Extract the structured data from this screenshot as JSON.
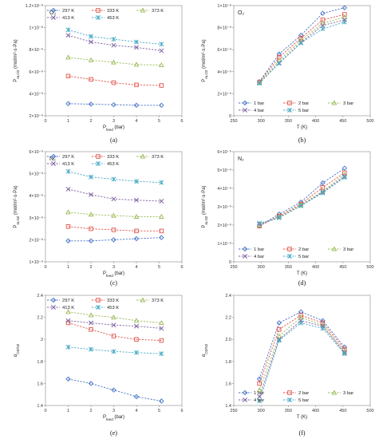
{
  "chart_data": [
    {
      "type": "line",
      "panel_label": "(a)",
      "gas_label": "O₂",
      "xlabel": "P_feed (bar)",
      "ylabel": "P_m,O2 (mol/m²·s·Pa)",
      "xlim": [
        0,
        6
      ],
      "ylim": [
        2e-09,
        1.2e-08
      ],
      "xticks": [
        0,
        1,
        2,
        3,
        4,
        5,
        6
      ],
      "yticks": [
        2e-09,
        4e-09,
        6e-09,
        8e-09,
        1e-08,
        1.2e-08
      ],
      "ytick_labels": [
        "2×10⁻⁹",
        "4×10⁻⁹",
        "6×10⁻⁹",
        "8×10⁻⁹",
        "1×10⁻⁸",
        "1.2×10⁻⁸"
      ],
      "legend_cols": 3,
      "series": [
        {
          "name": "297 K",
          "marker": "diamond",
          "color": "#4472C4",
          "x": [
            1,
            2,
            3,
            4,
            5.1
          ],
          "y": [
            3.1e-09,
            3.05e-09,
            3e-09,
            2.95e-09,
            2.95e-09
          ]
        },
        {
          "name": "333 K",
          "marker": "square",
          "color": "#E0534A",
          "x": [
            1,
            2,
            3,
            4,
            5.1
          ],
          "y": [
            5.6e-09,
            5.3e-09,
            5e-09,
            4.8e-09,
            4.75e-09
          ]
        },
        {
          "name": "373 K",
          "marker": "triangle",
          "color": "#9BBB59",
          "x": [
            1,
            2,
            3,
            4,
            5.1
          ],
          "y": [
            7.3e-09,
            7.05e-09,
            6.85e-09,
            6.65e-09,
            6.6e-09
          ]
        },
        {
          "name": "413 K",
          "marker": "x",
          "color": "#8064A2",
          "x": [
            1,
            2,
            3,
            4,
            5.1
          ],
          "y": [
            9.3e-09,
            8.7e-09,
            8.4e-09,
            8.2e-09,
            7.9e-09
          ]
        },
        {
          "name": "453 K",
          "marker": "star",
          "color": "#4BACC6",
          "x": [
            1,
            2,
            3,
            4,
            5.1
          ],
          "y": [
            9.8e-09,
            9.2e-09,
            8.95e-09,
            8.7e-09,
            8.5e-09
          ]
        }
      ]
    },
    {
      "type": "line",
      "panel_label": "(b)",
      "gas_label": "O₂",
      "xlabel": "T (K)",
      "ylabel": "P_m,O2 (mol/m²·s·Pa)",
      "xlim": [
        250,
        500
      ],
      "ylim": [
        0,
        1e-08
      ],
      "xticks": [
        250,
        300,
        350,
        400,
        450,
        500
      ],
      "yticks": [
        0,
        2e-09,
        4e-09,
        6e-09,
        8e-09,
        1e-08
      ],
      "ytick_labels": [
        "0",
        "2×10⁻⁹",
        "4×10⁻⁹",
        "6×10⁻⁹",
        "8×10⁻⁹",
        "1×10⁻⁸"
      ],
      "legend_cols": 3,
      "series": [
        {
          "name": "1 bar",
          "marker": "diamond",
          "color": "#4472C4",
          "x": [
            297,
            333,
            373,
            413,
            453
          ],
          "y": [
            3.1e-09,
            5.6e-09,
            7.3e-09,
            9.3e-09,
            9.8e-09
          ]
        },
        {
          "name": "2 bar",
          "marker": "square",
          "color": "#E0534A",
          "x": [
            297,
            333,
            373,
            413,
            453
          ],
          "y": [
            3.05e-09,
            5.3e-09,
            7.05e-09,
            8.7e-09,
            9.2e-09
          ]
        },
        {
          "name": "3 bar",
          "marker": "triangle",
          "color": "#9BBB59",
          "x": [
            297,
            333,
            373,
            413,
            453
          ],
          "y": [
            3e-09,
            5e-09,
            6.85e-09,
            8.4e-09,
            8.95e-09
          ]
        },
        {
          "name": "4 bar",
          "marker": "x",
          "color": "#8064A2",
          "x": [
            297,
            333,
            373,
            413,
            453
          ],
          "y": [
            2.95e-09,
            4.8e-09,
            6.65e-09,
            8.2e-09,
            8.7e-09
          ]
        },
        {
          "name": "5 bar",
          "marker": "star",
          "color": "#4BACC6",
          "x": [
            297,
            333,
            373,
            413,
            453
          ],
          "y": [
            2.95e-09,
            4.75e-09,
            6.6e-09,
            7.9e-09,
            8.5e-09
          ]
        }
      ]
    },
    {
      "type": "line",
      "panel_label": "(c)",
      "gas_label": "N₂",
      "xlabel": "P_feed (bar)",
      "ylabel": "P_m,N2 (mol/m²·s·Pa)",
      "xlim": [
        0,
        6
      ],
      "ylim": [
        1e-09,
        6e-09
      ],
      "xticks": [
        0,
        1,
        2,
        3,
        4,
        5,
        6
      ],
      "yticks": [
        1e-09,
        2e-09,
        3e-09,
        4e-09,
        5e-09,
        6e-09
      ],
      "ytick_labels": [
        "1×10⁻⁹",
        "2×10⁻⁹",
        "3×10⁻⁹",
        "4×10⁻⁹",
        "5×10⁻⁹",
        "6×10⁻⁹"
      ],
      "legend_cols": 3,
      "series": [
        {
          "name": "297 K",
          "marker": "diamond",
          "color": "#4472C4",
          "x": [
            1,
            2,
            3,
            4,
            5.1
          ],
          "y": [
            1.95e-09,
            1.95e-09,
            2e-09,
            2.05e-09,
            2.1e-09
          ]
        },
        {
          "name": "333 K",
          "marker": "square",
          "color": "#E0534A",
          "x": [
            1,
            2,
            3,
            4,
            5.1
          ],
          "y": [
            2.6e-09,
            2.5e-09,
            2.45e-09,
            2.4e-09,
            2.4e-09
          ]
        },
        {
          "name": "373 K",
          "marker": "triangle",
          "color": "#9BBB59",
          "x": [
            1,
            2,
            3,
            4,
            5.1
          ],
          "y": [
            3.25e-09,
            3.15e-09,
            3.1e-09,
            3.05e-09,
            3.05e-09
          ]
        },
        {
          "name": "413 K",
          "marker": "x",
          "color": "#8064A2",
          "x": [
            1,
            2,
            3,
            4,
            5.1
          ],
          "y": [
            4.3e-09,
            4.05e-09,
            3.85e-09,
            3.8e-09,
            3.75e-09
          ]
        },
        {
          "name": "453 K",
          "marker": "star",
          "color": "#4BACC6",
          "x": [
            1,
            2,
            3,
            4,
            5.1
          ],
          "y": [
            5.1e-09,
            4.85e-09,
            4.75e-09,
            4.65e-09,
            4.6e-09
          ]
        }
      ]
    },
    {
      "type": "line",
      "panel_label": "(d)",
      "gas_label": "N₂",
      "xlabel": "T (K)",
      "ylabel": "P_m,N2 (mol/m²·s·Pa)",
      "xlim": [
        250,
        500
      ],
      "ylim": [
        0,
        6e-09
      ],
      "xticks": [
        250,
        300,
        350,
        400,
        450,
        500
      ],
      "yticks": [
        0,
        1e-09,
        2e-09,
        3e-09,
        4e-09,
        5e-09,
        6e-09
      ],
      "ytick_labels": [
        "0",
        "1×10⁻⁹",
        "2×10⁻⁹",
        "3×10⁻⁹",
        "4×10⁻⁹",
        "5×10⁻⁹",
        "6×10⁻⁹"
      ],
      "legend_cols": 3,
      "series": [
        {
          "name": "1 bar",
          "marker": "diamond",
          "color": "#4472C4",
          "x": [
            297,
            333,
            373,
            413,
            453
          ],
          "y": [
            1.95e-09,
            2.6e-09,
            3.25e-09,
            4.3e-09,
            5.1e-09
          ]
        },
        {
          "name": "2 bar",
          "marker": "square",
          "color": "#E0534A",
          "x": [
            297,
            333,
            373,
            413,
            453
          ],
          "y": [
            1.95e-09,
            2.5e-09,
            3.15e-09,
            4.05e-09,
            4.85e-09
          ]
        },
        {
          "name": "3 bar",
          "marker": "triangle",
          "color": "#9BBB59",
          "x": [
            297,
            333,
            373,
            413,
            453
          ],
          "y": [
            2e-09,
            2.45e-09,
            3.1e-09,
            3.85e-09,
            4.75e-09
          ]
        },
        {
          "name": "4 bar",
          "marker": "x",
          "color": "#8064A2",
          "x": [
            297,
            333,
            373,
            413,
            453
          ],
          "y": [
            2.05e-09,
            2.4e-09,
            3.05e-09,
            3.8e-09,
            4.65e-09
          ]
        },
        {
          "name": "5 bar",
          "marker": "star",
          "color": "#4BACC6",
          "x": [
            297,
            333,
            373,
            413,
            453
          ],
          "y": [
            2.1e-09,
            2.4e-09,
            3.05e-09,
            3.75e-09,
            4.6e-09
          ]
        }
      ]
    },
    {
      "type": "line",
      "panel_label": "(e)",
      "xlabel": "P_feed (bar)",
      "ylabel": "α_O2/N2",
      "xlim": [
        0,
        6
      ],
      "ylim": [
        1.4,
        2.4
      ],
      "xticks": [
        0,
        1,
        2,
        3,
        4,
        5,
        6
      ],
      "yticks": [
        1.4,
        1.6,
        1.8,
        2.0,
        2.2,
        2.4
      ],
      "ytick_labels": [
        "1.4",
        "1.6",
        "1.8",
        "2",
        "2.2",
        "2.4"
      ],
      "legend_cols": 3,
      "series": [
        {
          "name": "297 K",
          "marker": "diamond",
          "color": "#4472C4",
          "x": [
            1,
            2,
            3,
            4,
            5.1
          ],
          "y": [
            1.64,
            1.6,
            1.54,
            1.48,
            1.44
          ]
        },
        {
          "name": "333 K",
          "marker": "square",
          "color": "#E0534A",
          "x": [
            1,
            2,
            3,
            4,
            5.1
          ],
          "y": [
            2.15,
            2.09,
            2.03,
            2.0,
            1.99
          ]
        },
        {
          "name": "373 K",
          "marker": "triangle",
          "color": "#9BBB59",
          "x": [
            1,
            2,
            3,
            4,
            5.1
          ],
          "y": [
            2.25,
            2.22,
            2.2,
            2.17,
            2.15
          ]
        },
        {
          "name": "413 K",
          "marker": "x",
          "color": "#8064A2",
          "x": [
            1,
            2,
            3,
            4,
            5.1
          ],
          "y": [
            2.17,
            2.15,
            2.13,
            2.12,
            2.1
          ]
        },
        {
          "name": "453 K",
          "marker": "star",
          "color": "#4BACC6",
          "x": [
            1,
            2,
            3,
            4,
            5.1
          ],
          "y": [
            1.93,
            1.91,
            1.89,
            1.88,
            1.87
          ]
        }
      ]
    },
    {
      "type": "line",
      "panel_label": "(f)",
      "xlabel": "T (K)",
      "ylabel": "α_O2/N2",
      "xlim": [
        250,
        500
      ],
      "ylim": [
        1.4,
        2.4
      ],
      "xticks": [
        250,
        300,
        350,
        400,
        450,
        500
      ],
      "yticks": [
        1.4,
        1.6,
        1.8,
        2.0,
        2.2,
        2.4
      ],
      "ytick_labels": [
        "1.4",
        "1.6",
        "1.8",
        "2.0",
        "2.2",
        "2.4"
      ],
      "legend_cols": 3,
      "series": [
        {
          "name": "1 bar",
          "marker": "diamond",
          "color": "#4472C4",
          "x": [
            297,
            333,
            373,
            413,
            453
          ],
          "y": [
            1.64,
            2.15,
            2.25,
            2.17,
            1.93
          ]
        },
        {
          "name": "2 bar",
          "marker": "square",
          "color": "#E0534A",
          "x": [
            297,
            333,
            373,
            413,
            453
          ],
          "y": [
            1.6,
            2.09,
            2.22,
            2.15,
            1.91
          ]
        },
        {
          "name": "3 bar",
          "marker": "triangle",
          "color": "#9BBB59",
          "x": [
            297,
            333,
            373,
            413,
            453
          ],
          "y": [
            1.54,
            2.03,
            2.2,
            2.13,
            1.89
          ]
        },
        {
          "name": "4 bar",
          "marker": "x",
          "color": "#8064A2",
          "x": [
            297,
            333,
            373,
            413,
            453
          ],
          "y": [
            1.48,
            2.0,
            2.17,
            2.12,
            1.88
          ]
        },
        {
          "name": "5 bar",
          "marker": "star",
          "color": "#4BACC6",
          "x": [
            297,
            333,
            373,
            413,
            453
          ],
          "y": [
            1.44,
            1.99,
            2.15,
            2.1,
            1.87
          ]
        }
      ]
    }
  ]
}
